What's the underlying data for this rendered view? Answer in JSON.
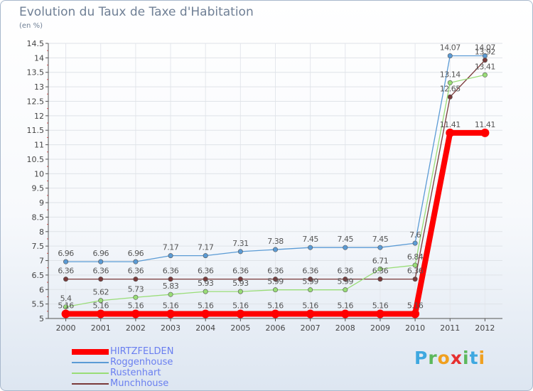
{
  "title": "Evolution du Taux de Taxe d'Habitation",
  "unit": "(en %)",
  "logo": {
    "letters": [
      "P",
      "r",
      "o",
      "x",
      "i",
      "t",
      "i"
    ],
    "colors": [
      "#3ea8e0",
      "#5cb85c",
      "#f0a020",
      "#e63030",
      "#5cb85c",
      "#3ea8e0",
      "#f0a020"
    ]
  },
  "chart_data": {
    "type": "line",
    "title": "Evolution du Taux de Taxe d'Habitation",
    "ylabel": "(en %)",
    "x": [
      "2000",
      "2001",
      "2002",
      "2003",
      "2004",
      "2005",
      "2006",
      "2007",
      "2008",
      "2009",
      "2010",
      "2011",
      "2012"
    ],
    "ylim": [
      5,
      14.5
    ],
    "yticks": [
      "5",
      "5.5",
      "6",
      "6.5",
      "7",
      "7.5",
      "8",
      "8.5",
      "9",
      "9.5",
      "10",
      "10.5",
      "11",
      "11.5",
      "12",
      "12.5",
      "13",
      "13.5",
      "14",
      "14.5"
    ],
    "series": [
      {
        "name": "HIRTZFELDEN",
        "color": "#ff0000",
        "values": [
          5.16,
          5.16,
          5.16,
          5.16,
          5.16,
          5.16,
          5.16,
          5.16,
          5.16,
          5.16,
          5.16,
          11.41,
          11.41
        ],
        "labels": [
          "5.16",
          "5.16",
          "5.16",
          "5.16",
          "5.16",
          "5.16",
          "5.16",
          "5.16",
          "5.16",
          "5.16",
          "5.16",
          "11.41",
          "11.41"
        ]
      },
      {
        "name": "Roggenhouse",
        "color": "#5b9bd5",
        "values": [
          6.96,
          6.96,
          6.96,
          7.17,
          7.17,
          7.31,
          7.38,
          7.45,
          7.45,
          7.45,
          7.6,
          14.07,
          14.07
        ],
        "labels": [
          "6.96",
          "6.96",
          "6.96",
          "7.17",
          "7.17",
          "7.31",
          "7.38",
          "7.45",
          "7.45",
          "7.45",
          "7.6",
          "14.07",
          "14.07"
        ]
      },
      {
        "name": "Rustenhart",
        "color": "#99dd77",
        "values": [
          5.4,
          5.62,
          5.73,
          5.83,
          5.93,
          5.93,
          5.99,
          5.99,
          5.99,
          6.71,
          6.84,
          13.14,
          13.41
        ],
        "labels": [
          "5.4",
          "5.62",
          "5.73",
          "5.83",
          "5.93",
          "5.93",
          "5.99",
          "5.99",
          "5.99",
          "6.71",
          "6.84",
          "13.14",
          "13.41"
        ]
      },
      {
        "name": "Munchhouse",
        "color": "#7a3a3a",
        "values": [
          6.36,
          6.36,
          6.36,
          6.36,
          6.36,
          6.36,
          6.36,
          6.36,
          6.36,
          6.36,
          6.36,
          12.65,
          13.92
        ],
        "labels": [
          "6.36",
          "6.36",
          "6.36",
          "6.36",
          "6.36",
          "6.36",
          "6.36",
          "6.36",
          "6.36",
          "6.36",
          "6.36",
          "12.65",
          "13.92"
        ]
      }
    ]
  }
}
